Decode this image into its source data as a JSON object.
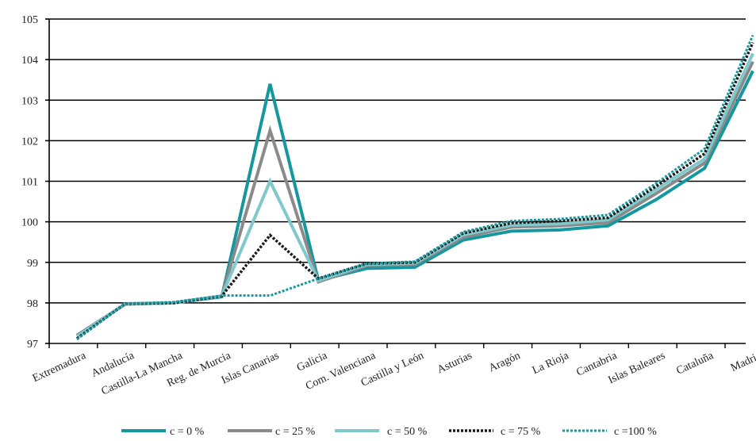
{
  "chart_data": {
    "type": "line",
    "title": "",
    "xlabel": "",
    "ylabel": "",
    "categories": [
      "Extremadura",
      "Andalucía",
      "Castilla-La Mancha",
      "Reg. de Murcia",
      "Islas Canarias",
      "Galicia",
      "Com. Valenciana",
      "Castilla y León",
      "Asturias",
      "Aragón",
      "La Rioja",
      "Cantabria",
      "Islas Baleares",
      "Cataluña",
      "Madrid"
    ],
    "ylim": [
      97,
      105
    ],
    "yticks": [
      "97",
      "98",
      "99",
      "100",
      "101",
      "102",
      "103",
      "104",
      "105"
    ],
    "grid": true,
    "legend_position": "bottom",
    "series": [
      {
        "name": "c = 0 %",
        "color": "#14979e",
        "style": "solid",
        "values": [
          97.2,
          97.97,
          98.0,
          98.15,
          103.4,
          98.55,
          98.85,
          98.88,
          99.55,
          99.77,
          99.8,
          99.9,
          100.55,
          101.32,
          103.72
        ]
      },
      {
        "name": "c = 25 %",
        "color": "#8a8a8a",
        "style": "solid",
        "values": [
          97.2,
          97.97,
          98.0,
          98.17,
          102.25,
          98.52,
          98.92,
          98.95,
          99.62,
          99.87,
          99.9,
          99.98,
          100.7,
          101.45,
          103.95
        ]
      },
      {
        "name": "c = 50 %",
        "color": "#7fc8cc",
        "style": "solid",
        "values": [
          97.17,
          97.98,
          98.0,
          98.17,
          101.0,
          98.55,
          98.95,
          98.98,
          99.68,
          99.92,
          99.95,
          100.05,
          100.8,
          101.55,
          104.15
        ]
      },
      {
        "name": "c = 75 %",
        "color": "#1a1a1a",
        "style": "dashed",
        "values": [
          97.12,
          97.98,
          98.0,
          98.17,
          99.67,
          98.6,
          98.97,
          99.0,
          99.72,
          99.97,
          100.02,
          100.1,
          100.88,
          101.68,
          104.42
        ]
      },
      {
        "name": "c =100 %",
        "color": "#14979e",
        "style": "dashed",
        "values": [
          97.1,
          97.98,
          98.02,
          98.18,
          98.18,
          98.6,
          98.97,
          99.02,
          99.75,
          100.02,
          100.07,
          100.17,
          100.95,
          101.8,
          104.6
        ]
      }
    ]
  }
}
